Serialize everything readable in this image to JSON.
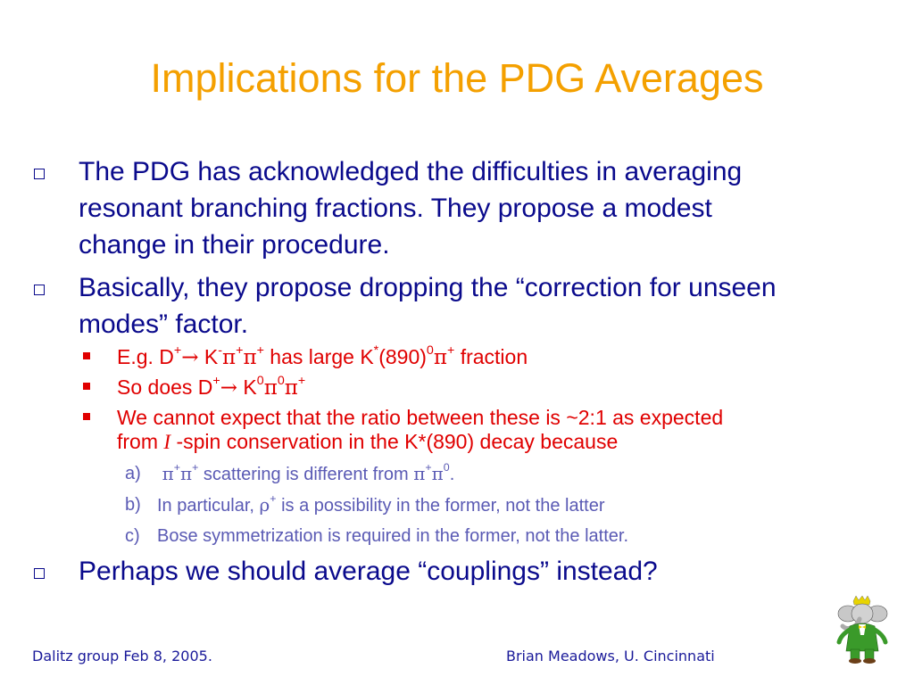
{
  "title": "Implications for the PDG Averages",
  "bullet1": {
    "line1": "The PDG has acknowledged the difficulties in averaging",
    "line2": "resonant branching fractions.  They propose a modest",
    "line3": "change in their procedure."
  },
  "bullet2": {
    "line1": "Basically, they propose dropping the “correction for unseen",
    "line2": "modes” factor."
  },
  "sub1": {
    "t1": "E.g. D",
    "t2": "+",
    "arrow": "→",
    "t3": " K",
    "t4": "-",
    "pi": "π",
    "t5": "+",
    "t6": "+",
    "t7": " has large K",
    "t8": "*",
    "t9": "(890)",
    "t10": "0",
    "t11": "+",
    "t12": " fraction"
  },
  "sub2": {
    "t1": "So does D",
    "t2": "+",
    "arrow": "→",
    "t3": " K",
    "t4": "0",
    "pi": "π",
    "t5": "0",
    "t6": "+"
  },
  "sub3": {
    "line1": "We cannot expect that the ratio between these is ~2:1 as expected",
    "t1": "from ",
    "iso": "I",
    "t2": " -spin conservation in the K*(890) decay because"
  },
  "subsub1": {
    "label": "a)",
    "pi": "π",
    "sup1": "+",
    "sup2": "+",
    "text": " scattering is different from ",
    "sup3": "+",
    "sup4": "0",
    "end": "."
  },
  "subsub2": {
    "label": "b)",
    "t1": "In particular, ",
    "rho": "ρ",
    "sup": "+",
    "t2": " is a possibility in the former, not the latter"
  },
  "subsub3": {
    "label": "c)",
    "text": "Bose symmetrization is required in the former, not the latter."
  },
  "bullet3": {
    "text": "Perhaps we should average “couplings” instead?"
  },
  "footer": {
    "left": "Dalitz group Feb 8, 2005.",
    "right": "Brian Meadows, U. Cincinnati"
  },
  "colors": {
    "title": "#f4a000",
    "level1": "#0a0a8c",
    "level2": "#e00000",
    "level3": "#5a5ab4"
  },
  "icons": {
    "bullet_level1": "hollow-square-with-shadow",
    "bullet_level2": "filled-square",
    "logo": "elephant-in-green-suit"
  }
}
